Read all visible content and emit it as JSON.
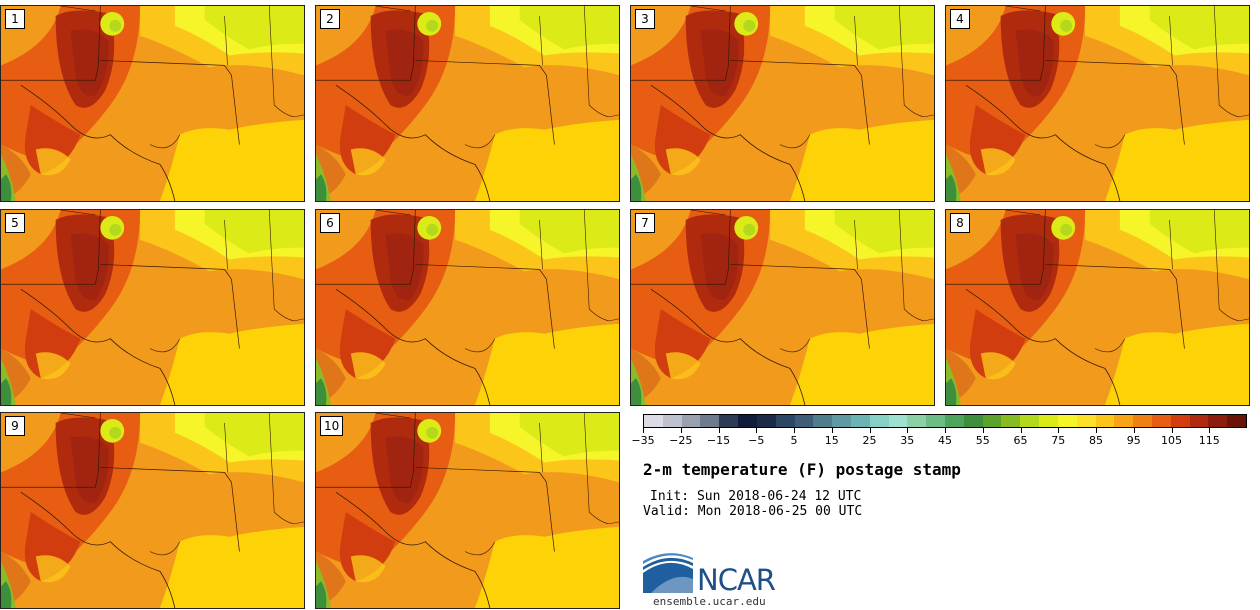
{
  "panels": [
    {
      "label": "1"
    },
    {
      "label": "2"
    },
    {
      "label": "3"
    },
    {
      "label": "4"
    },
    {
      "label": "5"
    },
    {
      "label": "6"
    },
    {
      "label": "7"
    },
    {
      "label": "8"
    },
    {
      "label": "9"
    },
    {
      "label": "10"
    }
  ],
  "colorbar": {
    "tick_labels": [
      "−35",
      "−25",
      "−15",
      "−5",
      "5",
      "15",
      "25",
      "35",
      "45",
      "55",
      "65",
      "75",
      "85",
      "95",
      "105",
      "115"
    ],
    "colors": [
      "#dcdce6",
      "#bfc1cc",
      "#9aa0ae",
      "#6f7a8c",
      "#2d3b55",
      "#101c38",
      "#1b2a48",
      "#2c4666",
      "#3e5e78",
      "#4f7d8c",
      "#5f9aa3",
      "#6bb4b3",
      "#86d0c6",
      "#9fe0d0",
      "#8cd0a6",
      "#6cbc86",
      "#4fa45c",
      "#3d8f3c",
      "#5ea22e",
      "#86bb24",
      "#b3d81c",
      "#dceb18",
      "#f6f52a",
      "#fde02a",
      "#fcc51a",
      "#f9a416",
      "#f08014",
      "#e75d12",
      "#d23d10",
      "#b02a0e",
      "#8c1c0c",
      "#6a1408"
    ]
  },
  "info": {
    "title": "2-m temperature (F) postage stamp",
    "init": "Init: Sun 2018-06-24 12 UTC",
    "valid": "Valid: Mon 2018-06-25 00 UTC",
    "logo_text": "NCAR",
    "website": "ensemble.ucar.edu"
  }
}
